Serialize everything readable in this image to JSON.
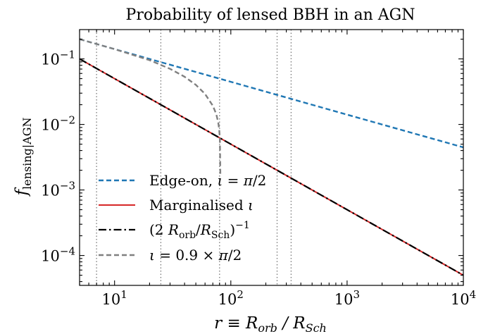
{
  "chart_data": {
    "type": "line",
    "title": "Probability of lensed BBH in an AGN",
    "xlabel": "r ≡ R_orb / R_Sch",
    "ylabel": "f_lensing|AGN",
    "xscale": "log",
    "yscale": "log",
    "xlim": [
      5,
      10000
    ],
    "ylim": [
      3.5e-05,
      0.28
    ],
    "x_ticks": [
      {
        "value": 10,
        "label": "10^1"
      },
      {
        "value": 100,
        "label": "10^2"
      },
      {
        "value": 1000,
        "label": "10^3"
      },
      {
        "value": 10000,
        "label": "10^4"
      }
    ],
    "y_ticks": [
      {
        "value": 0.0001,
        "label": "10^-4"
      },
      {
        "value": 0.001,
        "label": "10^-3"
      },
      {
        "value": 0.01,
        "label": "10^-2"
      },
      {
        "value": 0.1,
        "label": "10^-1"
      }
    ],
    "vertical_lines": [
      7,
      25,
      80,
      250,
      330
    ],
    "legend": {
      "position": "lower-left"
    },
    "series": [
      {
        "name": "Edge-on, ι = π/2",
        "color": "#1f77b4",
        "style": "dashed",
        "x": [
          5,
          10,
          100,
          1000,
          10000
        ],
        "y": [
          0.2,
          0.141,
          0.0447,
          0.0141,
          0.00447
        ]
      },
      {
        "name": "Marginalised ι",
        "color": "#d62728",
        "style": "solid",
        "x": [
          5,
          10,
          100,
          1000,
          10000
        ],
        "y": [
          0.1,
          0.05,
          0.005,
          0.0005,
          5e-05
        ]
      },
      {
        "name": "(2 R_orb/R_Sch)^-1",
        "color": "#000000",
        "style": "dashdot",
        "x": [
          5,
          10,
          100,
          1000,
          10000
        ],
        "y": [
          0.1,
          0.05,
          0.005,
          0.0005,
          5e-05
        ]
      },
      {
        "name": "ι = 0.9 × π/2",
        "color": "#808080",
        "style": "dashed",
        "x": [
          5,
          10,
          20,
          30,
          40,
          50,
          60,
          70,
          75,
          78,
          79.5,
          80.5,
          81.3
        ],
        "y": [
          0.2,
          0.141,
          0.0956,
          0.0706,
          0.0534,
          0.0402,
          0.0292,
          0.0193,
          0.0143,
          0.0106,
          0.0083,
          0.0059,
          0.0016
        ]
      }
    ]
  }
}
